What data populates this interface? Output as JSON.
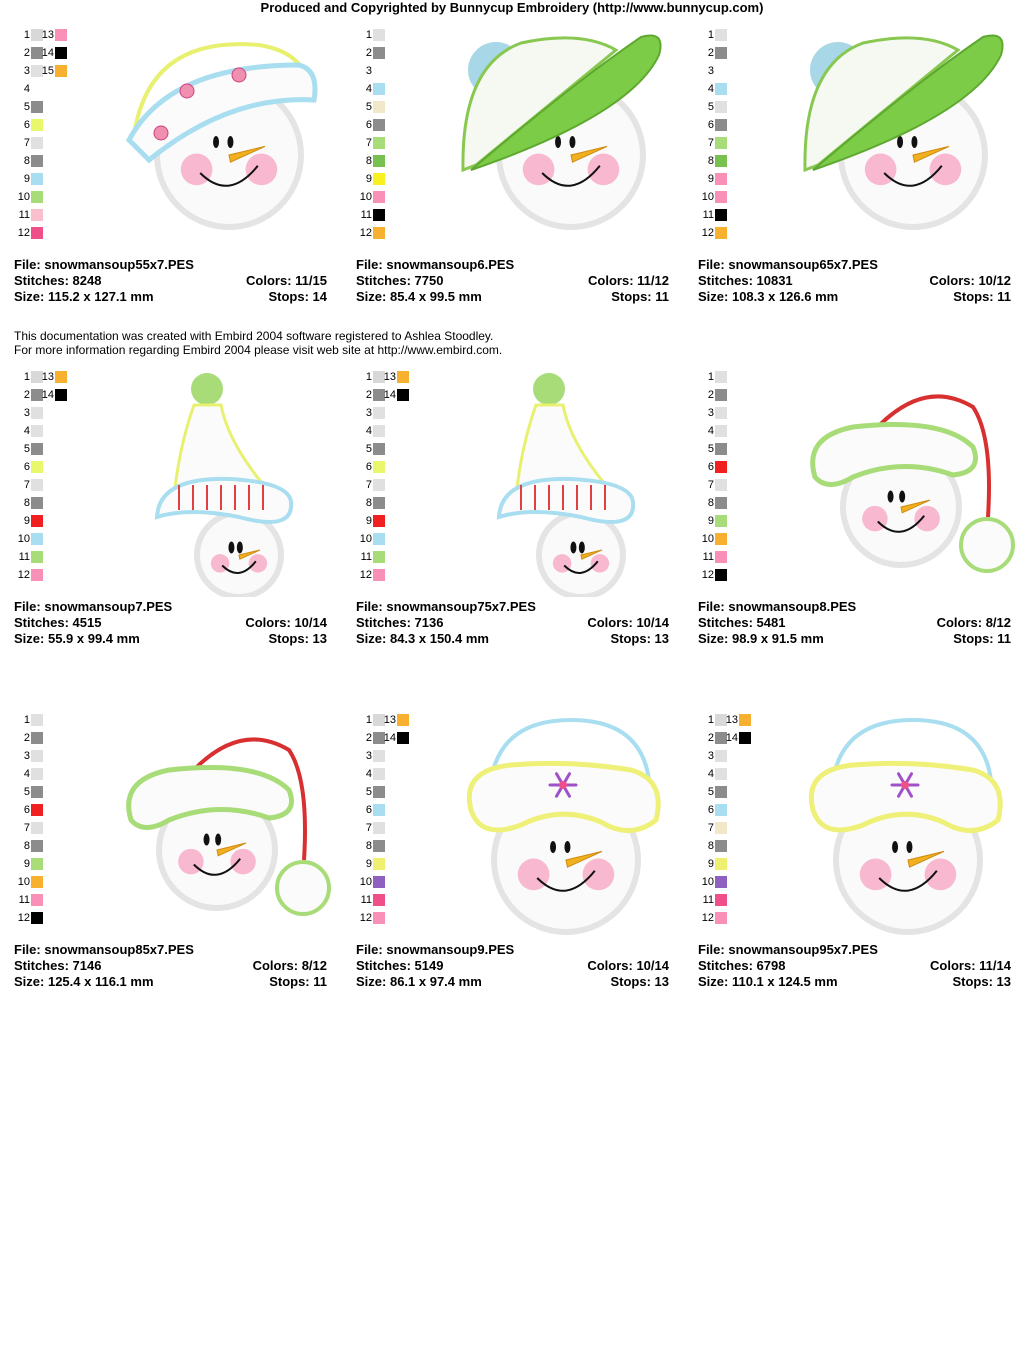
{
  "header": "Produced and Copyrighted by Bunnycup Embroidery (http://www.bunnycup.com)",
  "notice": {
    "line1": "This documentation was created with Embird 2004 software registered to Ashlea Stoodley.",
    "line2": "For more information regarding Embird 2004 please visit web site at http://www.embird.com."
  },
  "labels": {
    "file": "File: ",
    "stitches": "Stitches: ",
    "size": "Size: ",
    "colors": "Colors: ",
    "stops": "Stops: "
  },
  "designs": [
    {
      "file": "snowmansoup55x7.PES",
      "stitches": "8248",
      "size": "115.2 x 127.1 mm",
      "colors": "11/15",
      "stops": "14",
      "palette": [
        "#d8d8d8",
        "#8c8c8c",
        "#e0e0e0",
        "#ffffff",
        "#8c8c8c",
        "#e8f86a",
        "#e0e0e0",
        "#8c8c8c",
        "#a8def0",
        "#a8dc78",
        "#f8c0cc",
        "#f0508a",
        "#f890b8",
        "#000000",
        "#f8b030"
      ],
      "art": {
        "hat": "beanie-band",
        "hatColor": "#a8def0",
        "topColor": "#e8f070",
        "accent": "#f090b0"
      }
    },
    {
      "file": "snowmansoup6.PES",
      "stitches": "7750",
      "size": "85.4 x 99.5 mm",
      "colors": "11/12",
      "stops": "11",
      "palette": [
        "#e0e0e0",
        "#8c8c8c",
        "#ffffff",
        "#a8def0",
        "#f0e8c8",
        "#8c8c8c",
        "#a8dc78",
        "#78c050",
        "#f8f020",
        "#f890b8",
        "#000000",
        "#f8b030"
      ],
      "art": {
        "hat": "cap",
        "hatColor": "#7ccc48",
        "topColor": "#a8d8e8",
        "accent": "#88c850"
      }
    },
    {
      "file": "snowmansoup65x7.PES",
      "stitches": "10831",
      "size": "108.3 x 126.6 mm",
      "colors": "10/12",
      "stops": "11",
      "palette": [
        "#e0e0e0",
        "#8c8c8c",
        "#ffffff",
        "#a8def0",
        "#e0e0e0",
        "#8c8c8c",
        "#a8dc78",
        "#78c050",
        "#f890b8",
        "#f890b8",
        "#000000",
        "#f8b030"
      ],
      "art": {
        "hat": "cap",
        "hatColor": "#7ccc48",
        "topColor": "#a8d8e8",
        "accent": "#88c850"
      }
    },
    {
      "file": "snowmansoup7.PES",
      "stitches": "4515",
      "size": "55.9 x 99.4 mm",
      "colors": "10/14",
      "stops": "13",
      "palette": [
        "#d8d8d8",
        "#8c8c8c",
        "#e0e0e0",
        "#e0e0e0",
        "#8c8c8c",
        "#e8f86a",
        "#e0e0e0",
        "#8c8c8c",
        "#f02020",
        "#a8def0",
        "#a8dc78",
        "#f890b8",
        "#f8b030",
        "#000000"
      ],
      "art": {
        "hat": "stocking",
        "hatColor": "#a8def0",
        "topColor": "#e8f070",
        "accent": "#e04040"
      }
    },
    {
      "file": "snowmansoup75x7.PES",
      "stitches": "7136",
      "size": "84.3 x 150.4 mm",
      "colors": "10/14",
      "stops": "13",
      "palette": [
        "#d8d8d8",
        "#8c8c8c",
        "#e0e0e0",
        "#e0e0e0",
        "#8c8c8c",
        "#e8f86a",
        "#e0e0e0",
        "#8c8c8c",
        "#f02020",
        "#a8def0",
        "#a8dc78",
        "#f890b8",
        "#f8b030",
        "#000000"
      ],
      "art": {
        "hat": "stocking",
        "hatColor": "#a8def0",
        "topColor": "#e8f070",
        "accent": "#e04040"
      }
    },
    {
      "file": "snowmansoup8.PES",
      "stitches": "5481",
      "size": "98.9 x 91.5 mm",
      "colors": "8/12",
      "stops": "11",
      "palette": [
        "#e0e0e0",
        "#8c8c8c",
        "#e0e0e0",
        "#e0e0e0",
        "#8c8c8c",
        "#f02020",
        "#e0e0e0",
        "#8c8c8c",
        "#a8dc78",
        "#f8b030",
        "#f890b8",
        "#000000"
      ],
      "art": {
        "hat": "santa",
        "hatColor": "#a8dc78",
        "topColor": "#d83030",
        "accent": "#a8dc78"
      }
    },
    {
      "file": "snowmansoup85x7.PES",
      "stitches": "7146",
      "size": "125.4 x 116.1 mm",
      "colors": "8/12",
      "stops": "11",
      "palette": [
        "#e0e0e0",
        "#8c8c8c",
        "#e0e0e0",
        "#e0e0e0",
        "#8c8c8c",
        "#f02020",
        "#e0e0e0",
        "#8c8c8c",
        "#a8dc78",
        "#f8b030",
        "#f890b8",
        "#000000"
      ],
      "art": {
        "hat": "santa",
        "hatColor": "#a8dc78",
        "topColor": "#d83030",
        "accent": "#a8dc78"
      }
    },
    {
      "file": "snowmansoup9.PES",
      "stitches": "5149",
      "size": "86.1 x 97.4 mm",
      "colors": "10/14",
      "stops": "13",
      "palette": [
        "#d8d8d8",
        "#8c8c8c",
        "#e0e0e0",
        "#e0e0e0",
        "#8c8c8c",
        "#a8def0",
        "#e0e0e0",
        "#8c8c8c",
        "#f0f070",
        "#9060c0",
        "#f0508a",
        "#f890b8",
        "#f8b030",
        "#000000"
      ],
      "art": {
        "hat": "brim",
        "hatColor": "#eef078",
        "topColor": "#a8def0",
        "accent": "#a050c8"
      }
    },
    {
      "file": "snowmansoup95x7.PES",
      "stitches": "6798",
      "size": "110.1 x 124.5 mm",
      "colors": "11/14",
      "stops": "13",
      "palette": [
        "#d8d8d8",
        "#8c8c8c",
        "#e0e0e0",
        "#e0e0e0",
        "#8c8c8c",
        "#a8def0",
        "#f0e8c8",
        "#8c8c8c",
        "#f0f070",
        "#9060c0",
        "#f0508a",
        "#f890b8",
        "#f8b030",
        "#000000"
      ],
      "art": {
        "hat": "brim",
        "hatColor": "#eef078",
        "topColor": "#a8def0",
        "accent": "#a050c8"
      }
    }
  ]
}
